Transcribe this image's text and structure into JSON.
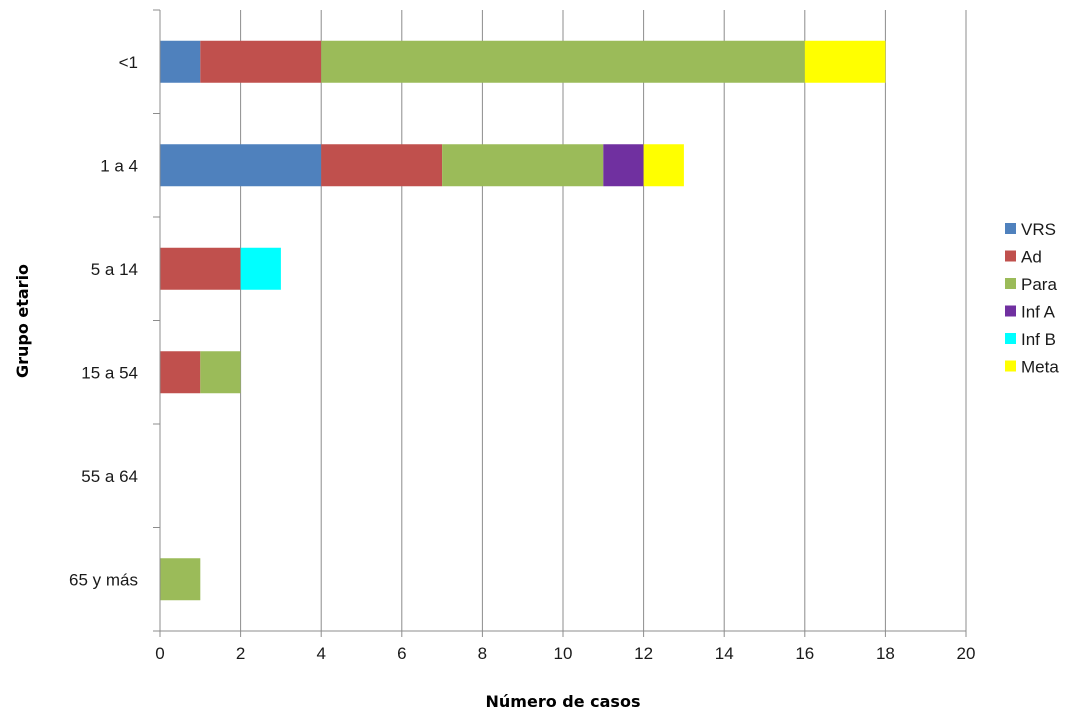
{
  "chart_data": {
    "type": "bar",
    "orientation": "horizontal",
    "stacked": true,
    "title": "",
    "xlabel": "Número de casos",
    "ylabel": "Grupo etario",
    "xlim": [
      0,
      20
    ],
    "x_ticks": [
      0,
      2,
      4,
      6,
      8,
      10,
      12,
      14,
      16,
      18,
      20
    ],
    "grid": "vertical",
    "legend_position": "right",
    "categories": [
      "<1",
      "1 a 4",
      "5 a 14",
      "15 a 54",
      "55 a 64",
      "65 y más"
    ],
    "series": [
      {
        "name": "VRS",
        "color": "#4F81BD",
        "values": [
          1,
          4,
          0,
          0,
          0,
          0
        ]
      },
      {
        "name": "Ad",
        "color": "#C0504D",
        "values": [
          3,
          3,
          2,
          1,
          0,
          0
        ]
      },
      {
        "name": "Para",
        "color": "#9BBB59",
        "values": [
          12,
          4,
          0,
          1,
          0,
          1
        ]
      },
      {
        "name": "Inf A",
        "color": "#7030A0",
        "values": [
          0,
          1,
          0,
          0,
          0,
          0
        ]
      },
      {
        "name": "Inf B",
        "color": "#00FFFF",
        "values": [
          0,
          0,
          1,
          0,
          0,
          0
        ]
      },
      {
        "name": "Meta",
        "color": "#FFFF00",
        "values": [
          2,
          1,
          0,
          0,
          0,
          0
        ]
      }
    ]
  }
}
